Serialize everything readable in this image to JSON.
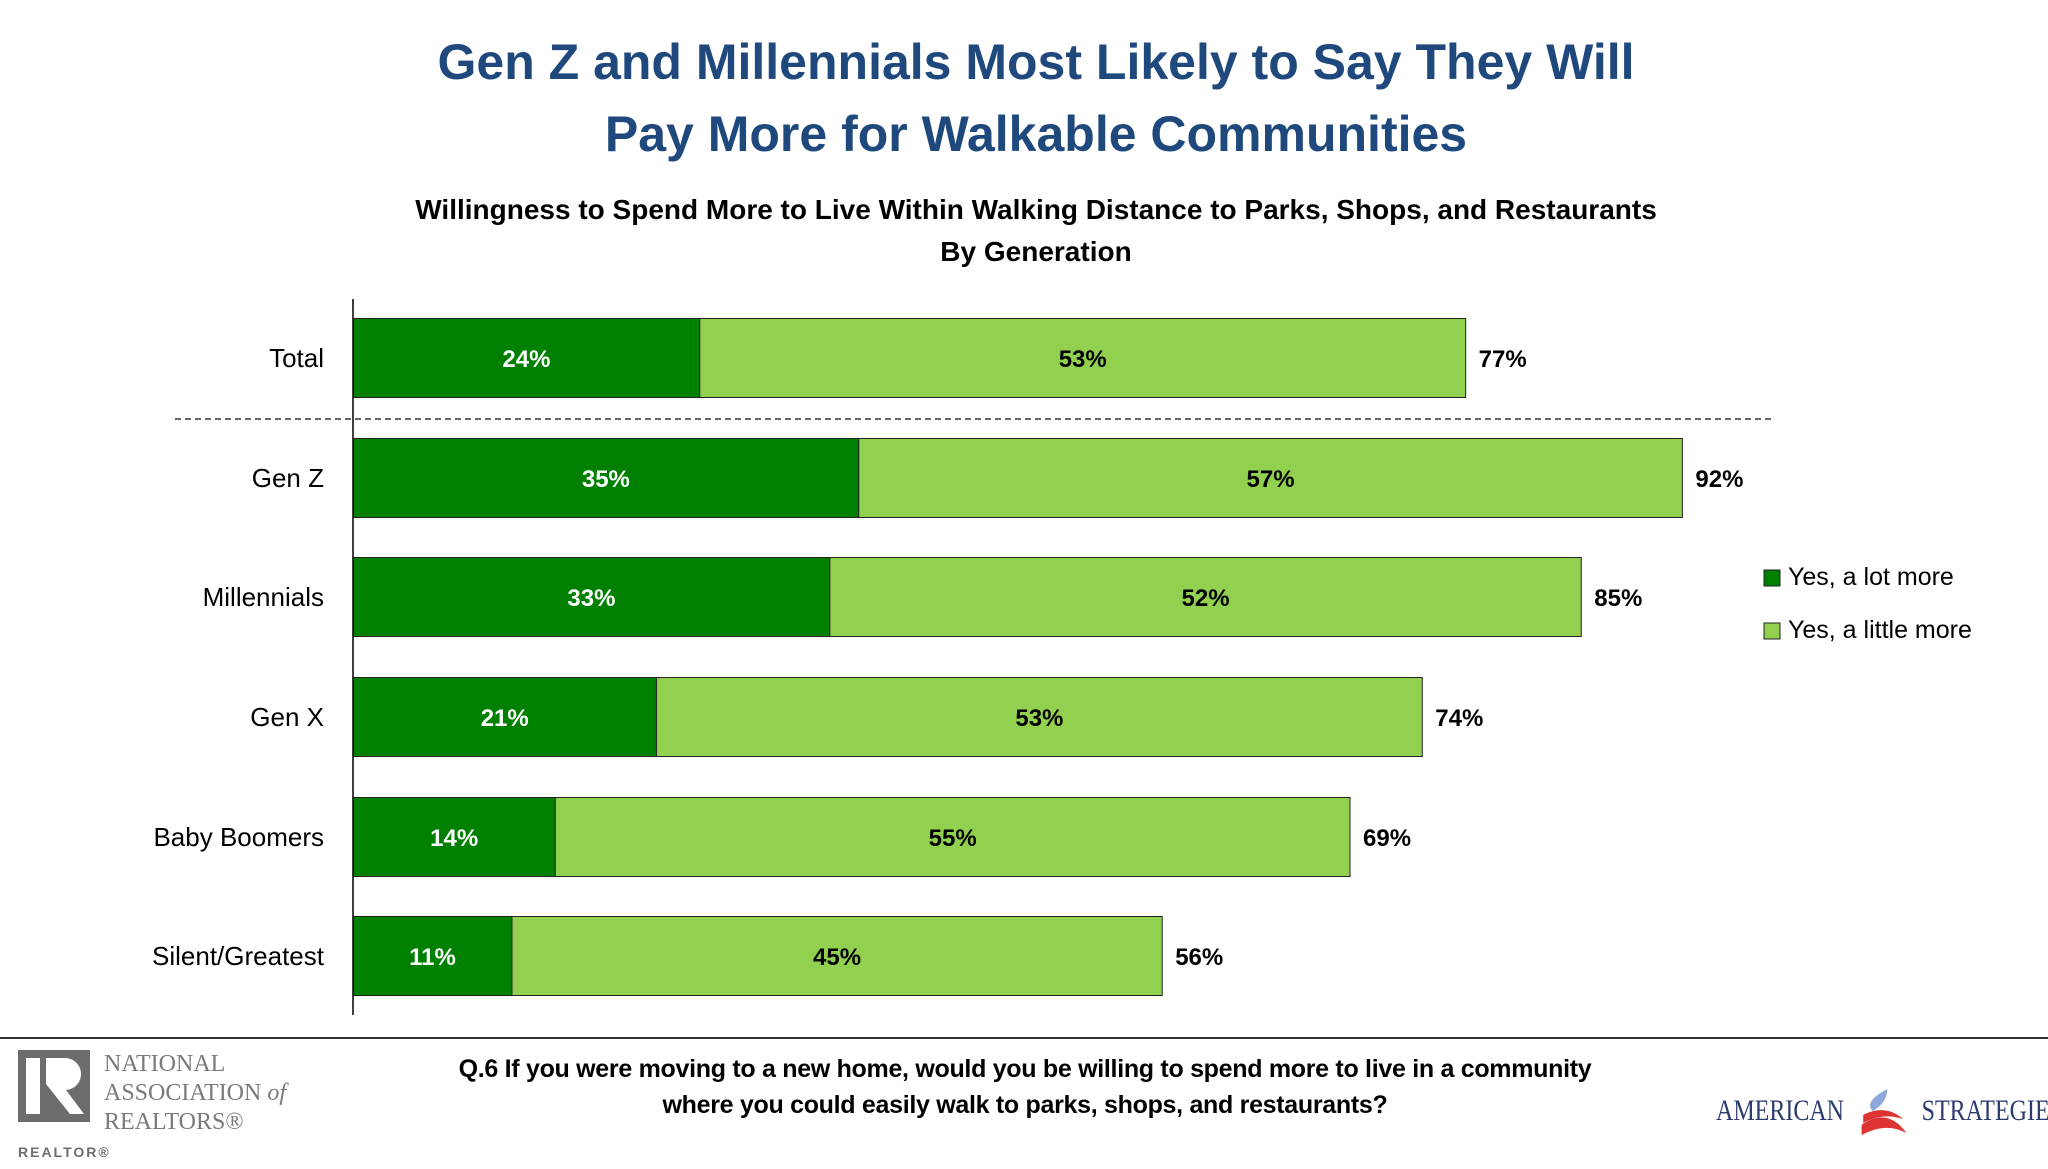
{
  "title_lines": [
    "Gen Z and Millennials Most Likely to Say They Will",
    "Pay More for Walkable Communities"
  ],
  "chart_data": {
    "type": "bar",
    "orientation": "horizontal-stacked",
    "title": "Willingness to Spend More to Live Within Walking Distance to Parks, Shops, and Restaurants",
    "subtitle": "By Generation",
    "categories": [
      "Total",
      "Gen Z",
      "Millennials",
      "Gen X",
      "Baby Boomers",
      "Silent/Greatest"
    ],
    "series": [
      {
        "name": "Yes, a lot more",
        "color": "#008000",
        "values": [
          24,
          35,
          33,
          21,
          14,
          11
        ]
      },
      {
        "name": "Yes, a little more",
        "color": "#92d050",
        "values": [
          53,
          57,
          52,
          53,
          55,
          45
        ]
      }
    ],
    "totals": [
      77,
      92,
      85,
      74,
      69,
      56
    ],
    "value_suffix": "%",
    "xlim": [
      0,
      100
    ],
    "legend": "right",
    "grid": false
  },
  "footer": {
    "question_lines": [
      "Q.6 If you were moving to a new home, would you be willing to spend more to live in a community",
      "where you could easily walk to parks, shops, and restaurants?"
    ],
    "nar_logo": [
      "NATIONAL",
      "ASSOCIATION",
      "of",
      "REALTORS®",
      "REALTOR®"
    ],
    "as_logo": [
      "AMERICAN",
      "STRATEGIES"
    ]
  }
}
